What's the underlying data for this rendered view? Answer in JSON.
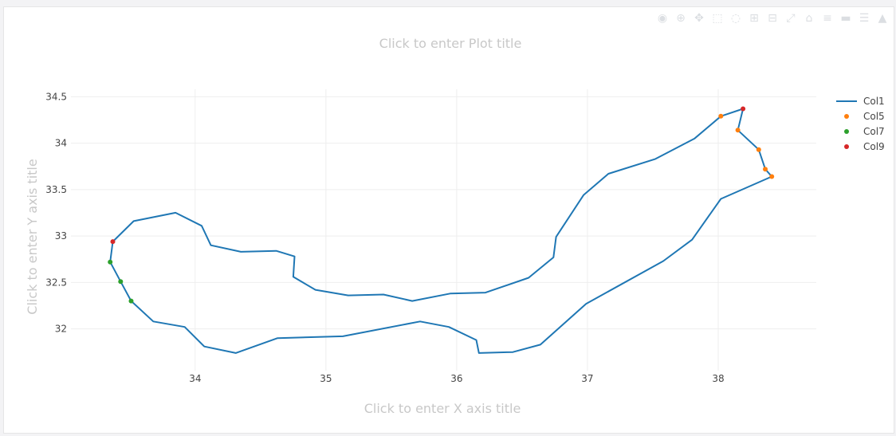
{
  "modebar": {
    "buttons": [
      {
        "icon": "camera-icon",
        "glyph": "◉"
      },
      {
        "icon": "zoom-icon",
        "glyph": "⊕"
      },
      {
        "icon": "pan-icon",
        "glyph": "✥"
      },
      {
        "icon": "select-icon",
        "glyph": "⬚"
      },
      {
        "icon": "lasso-icon",
        "glyph": "◌"
      },
      {
        "icon": "zoom-in-icon",
        "glyph": "⊞"
      },
      {
        "icon": "zoom-out-icon",
        "glyph": "⊟"
      },
      {
        "icon": "autoscale-icon",
        "glyph": "⤢"
      },
      {
        "icon": "reset-axes-icon",
        "glyph": "⌂"
      },
      {
        "icon": "spike-lines-icon",
        "glyph": "≡"
      },
      {
        "icon": "hover-closest-icon",
        "glyph": "▬"
      },
      {
        "icon": "hover-compare-icon",
        "glyph": "☰"
      },
      {
        "icon": "plotly-logo-icon",
        "glyph": "▲"
      }
    ]
  },
  "chart_data": {
    "type": "scatter",
    "title": "Click to enter Plot title",
    "xlabel": "Click to enter X axis title",
    "ylabel": "Click to enter Y axis title",
    "xlim": [
      33.05,
      38.75
    ],
    "ylim": [
      31.55,
      34.58
    ],
    "x_ticks": [
      "34",
      "35",
      "36",
      "37",
      "38"
    ],
    "x_tick_values": [
      34,
      35,
      36,
      37,
      38
    ],
    "y_ticks": [
      "32",
      "32.5",
      "33",
      "33.5",
      "34",
      "34.5"
    ],
    "y_tick_values": [
      32,
      32.5,
      33,
      33.5,
      34,
      34.5
    ],
    "grid": true,
    "legend": "top-right",
    "series": [
      {
        "name": "Col1",
        "mode": "lines",
        "color": "#1f77b4",
        "points": [
          [
            38.19,
            34.37
          ],
          [
            38.15,
            34.14
          ],
          [
            38.31,
            33.93
          ],
          [
            38.36,
            33.72
          ],
          [
            38.41,
            33.64
          ],
          [
            38.02,
            33.4
          ],
          [
            37.8,
            32.96
          ],
          [
            37.58,
            32.73
          ],
          [
            36.99,
            32.27
          ],
          [
            36.64,
            31.83
          ],
          [
            36.43,
            31.75
          ],
          [
            36.17,
            31.74
          ],
          [
            36.15,
            31.88
          ],
          [
            35.94,
            32.02
          ],
          [
            35.72,
            32.08
          ],
          [
            35.13,
            31.92
          ],
          [
            34.63,
            31.9
          ],
          [
            34.31,
            31.74
          ],
          [
            34.07,
            31.81
          ],
          [
            33.92,
            32.02
          ],
          [
            33.68,
            32.08
          ],
          [
            33.51,
            32.3
          ],
          [
            33.43,
            32.51
          ],
          [
            33.35,
            32.72
          ],
          [
            33.37,
            32.94
          ],
          [
            33.53,
            33.16
          ],
          [
            33.85,
            33.25
          ],
          [
            34.05,
            33.11
          ],
          [
            34.12,
            32.9
          ],
          [
            34.35,
            32.83
          ],
          [
            34.62,
            32.84
          ],
          [
            34.76,
            32.78
          ],
          [
            34.75,
            32.56
          ],
          [
            34.92,
            32.42
          ],
          [
            35.17,
            32.36
          ],
          [
            35.44,
            32.37
          ],
          [
            35.66,
            32.3
          ],
          [
            35.95,
            32.38
          ],
          [
            36.22,
            32.39
          ],
          [
            36.55,
            32.55
          ],
          [
            36.74,
            32.77
          ],
          [
            36.76,
            32.99
          ],
          [
            36.97,
            33.44
          ],
          [
            37.16,
            33.67
          ],
          [
            37.52,
            33.83
          ],
          [
            37.82,
            34.05
          ],
          [
            38.02,
            34.29
          ],
          [
            38.19,
            34.37
          ]
        ]
      },
      {
        "name": "Col5",
        "mode": "markers",
        "color": "#ff7f0e",
        "points": [
          [
            38.02,
            34.29
          ],
          [
            38.15,
            34.14
          ],
          [
            38.31,
            33.93
          ],
          [
            38.36,
            33.72
          ],
          [
            38.41,
            33.64
          ]
        ]
      },
      {
        "name": "Col7",
        "mode": "markers",
        "color": "#2ca02c",
        "points": [
          [
            33.35,
            32.72
          ],
          [
            33.43,
            32.51
          ],
          [
            33.51,
            32.3
          ]
        ]
      },
      {
        "name": "Col9",
        "mode": "markers",
        "color": "#d62728",
        "points": [
          [
            38.19,
            34.37
          ],
          [
            33.37,
            32.94
          ]
        ]
      }
    ]
  }
}
